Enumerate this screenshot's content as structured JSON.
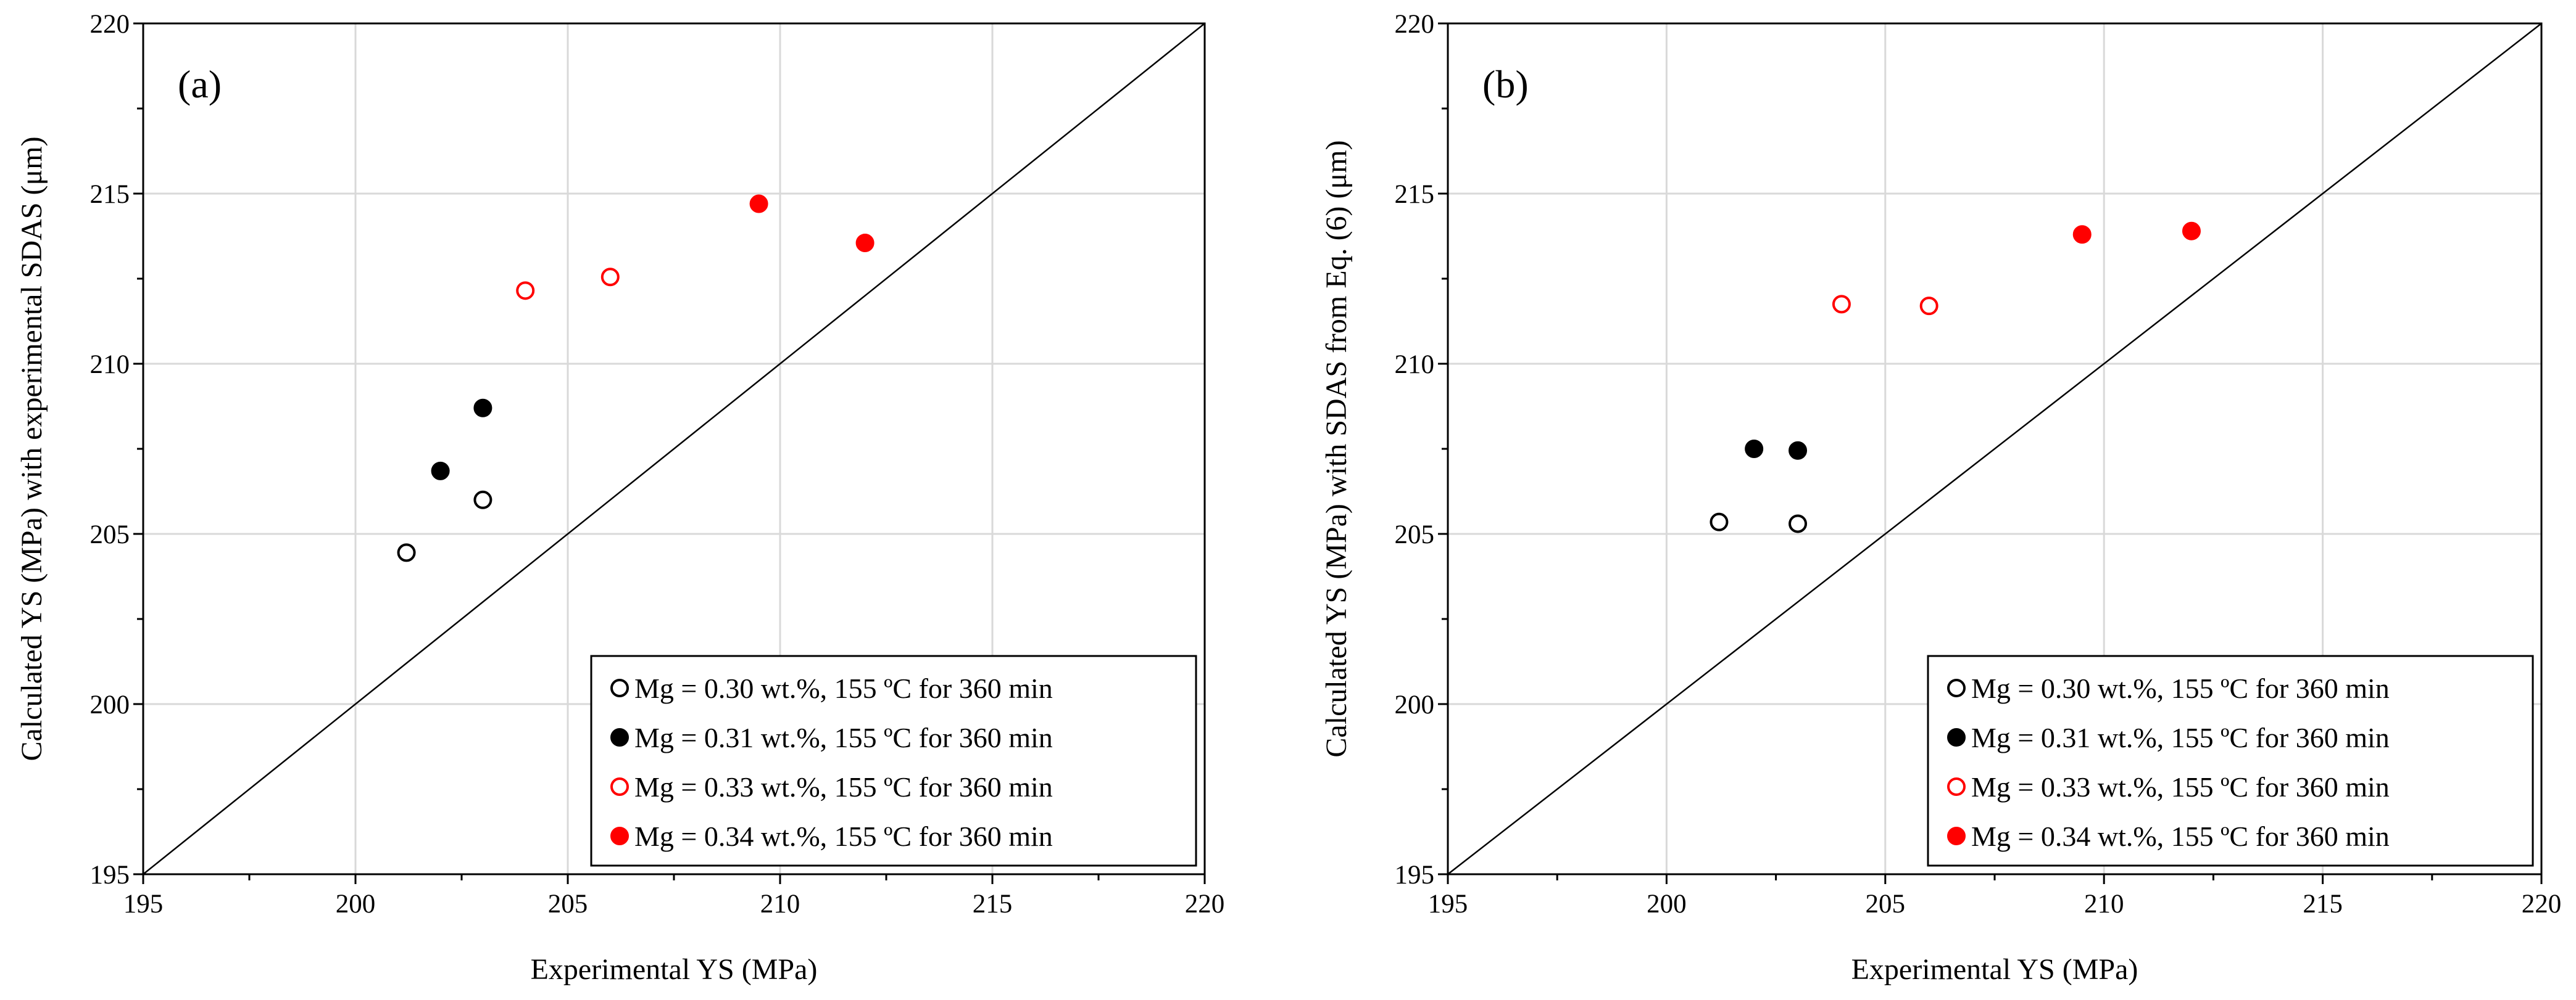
{
  "chart_data": [
    {
      "type": "scatter",
      "panel_label": "(a)",
      "xlabel": "Experimental YS (MPa)",
      "ylabel": "Calculated YS (MPa) with experimental SDAS (μm)",
      "xlim": [
        195,
        220
      ],
      "ylim": [
        195,
        220
      ],
      "x_ticks": [
        "195",
        "200",
        "205",
        "210",
        "215",
        "220"
      ],
      "y_ticks": [
        "195",
        "200",
        "205",
        "210",
        "215",
        "220"
      ],
      "grid": true,
      "reference_line": "y = x",
      "legend_position": "bottom-right",
      "series": [
        {
          "name": "Mg = 0.30 wt.%, 155 ºC for 360 min",
          "marker": "open",
          "color": "#000000",
          "points": [
            {
              "x": 201.2,
              "y": 204.45
            },
            {
              "x": 203.0,
              "y": 206.0
            }
          ]
        },
        {
          "name": "Mg = 0.31 wt.%, 155 ºC for 360 min",
          "marker": "filled",
          "color": "#000000",
          "points": [
            {
              "x": 202.0,
              "y": 206.85
            },
            {
              "x": 203.0,
              "y": 208.7
            }
          ]
        },
        {
          "name": "Mg = 0.33 wt.%, 155 ºC for 360 min",
          "marker": "open",
          "color": "#ff0000",
          "points": [
            {
              "x": 204.0,
              "y": 212.15
            },
            {
              "x": 206.0,
              "y": 212.55
            }
          ]
        },
        {
          "name": "Mg = 0.34 wt.%, 155 ºC for 360 min",
          "marker": "filled",
          "color": "#ff0000",
          "points": [
            {
              "x": 209.5,
              "y": 214.7
            },
            {
              "x": 212.0,
              "y": 213.55
            }
          ]
        }
      ]
    },
    {
      "type": "scatter",
      "panel_label": "(b)",
      "xlabel": "Experimental YS (MPa)",
      "ylabel": "Calculated YS (MPa) with SDAS from Eq. (6) (μm)",
      "xlim": [
        195,
        220
      ],
      "ylim": [
        195,
        220
      ],
      "x_ticks": [
        "195",
        "200",
        "205",
        "210",
        "215",
        "220"
      ],
      "y_ticks": [
        "195",
        "200",
        "205",
        "210",
        "215",
        "220"
      ],
      "grid": true,
      "reference_line": "y = x",
      "legend_position": "bottom-right",
      "series": [
        {
          "name": "Mg = 0.30 wt.%, 155 ºC for 360 min",
          "marker": "open",
          "color": "#000000",
          "points": [
            {
              "x": 201.2,
              "y": 205.35
            },
            {
              "x": 203.0,
              "y": 205.3
            }
          ]
        },
        {
          "name": "Mg = 0.31 wt.%, 155 ºC for 360 min",
          "marker": "filled",
          "color": "#000000",
          "points": [
            {
              "x": 202.0,
              "y": 207.5
            },
            {
              "x": 203.0,
              "y": 207.45
            }
          ]
        },
        {
          "name": "Mg = 0.33 wt.%, 155 ºC for 360 min",
          "marker": "open",
          "color": "#ff0000",
          "points": [
            {
              "x": 204.0,
              "y": 211.75
            },
            {
              "x": 206.0,
              "y": 211.7
            }
          ]
        },
        {
          "name": "Mg = 0.34 wt.%, 155 ºC for 360 min",
          "marker": "filled",
          "color": "#ff0000",
          "points": [
            {
              "x": 209.5,
              "y": 213.8
            },
            {
              "x": 212.0,
              "y": 213.9
            }
          ]
        }
      ]
    }
  ]
}
